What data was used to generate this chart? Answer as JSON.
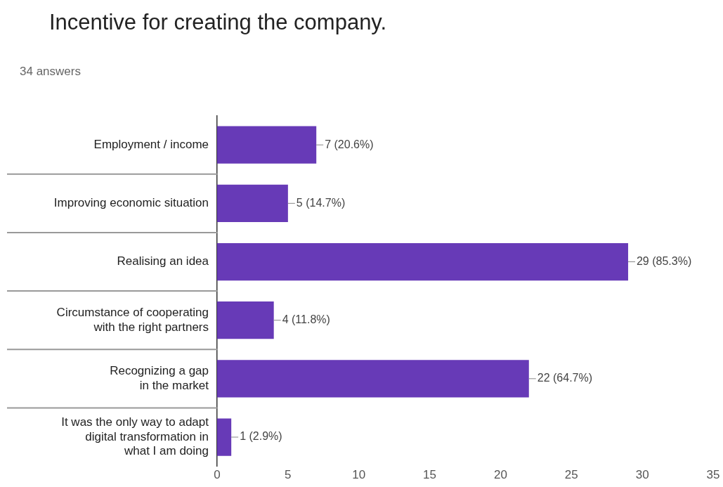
{
  "chart_data": {
    "type": "bar",
    "orientation": "horizontal",
    "title": "Incentive for creating the company.",
    "subtitle": "34 answers",
    "categories": [
      "Employment / income",
      "Improving economic situation",
      "Realising an idea",
      "Circumstance of cooperating\nwith the right partners",
      "Recognizing a gap\nin the market",
      "It was the only way to adapt\ndigital transformation in\nwhat I am doing"
    ],
    "values": [
      7,
      5,
      29,
      4,
      22,
      1
    ],
    "value_labels": [
      "7 (20.6%)",
      "5 (14.7%)",
      "29 (85.3%)",
      "4 (11.8%)",
      "22 (64.7%)",
      "1 (2.9%)"
    ],
    "color": "#673ab7",
    "xlim": [
      0,
      35
    ],
    "xticks": [
      0,
      5,
      10,
      15,
      20,
      25,
      30,
      35
    ],
    "grid": false,
    "legend": false
  }
}
